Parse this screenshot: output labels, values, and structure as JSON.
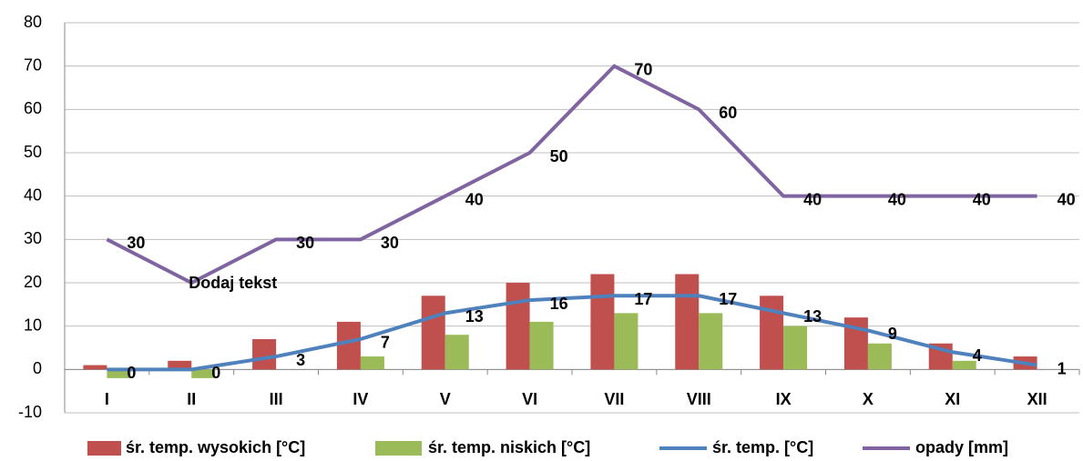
{
  "chart_data": {
    "type": "bar",
    "categories": [
      "I",
      "II",
      "III",
      "IV",
      "V",
      "VI",
      "VII",
      "VIII",
      "IX",
      "X",
      "XI",
      "XII"
    ],
    "series": [
      {
        "name": "śr. temp. wysokich [°C]",
        "type": "bar",
        "color": "#c0504d",
        "values": [
          1,
          2,
          7,
          11,
          17,
          20,
          22,
          22,
          17,
          12,
          6,
          3
        ]
      },
      {
        "name": "śr. temp. niskich [°C]",
        "type": "bar",
        "color": "#9bbb59",
        "values": [
          -2,
          -2,
          0,
          3,
          8,
          11,
          13,
          13,
          10,
          6,
          2,
          0
        ]
      },
      {
        "name": "śr. temp. [°C]",
        "type": "line",
        "color": "#4f81bd",
        "values": [
          0,
          0,
          3,
          7,
          13,
          16,
          17,
          17,
          13,
          9,
          4,
          1
        ],
        "labels": true
      },
      {
        "name": "opady [mm]",
        "type": "line",
        "color": "#8064a2",
        "values": [
          30,
          20,
          30,
          30,
          40,
          50,
          70,
          60,
          40,
          40,
          40,
          40
        ],
        "labels": true
      }
    ],
    "annotations": [
      "Dodaj tekst"
    ],
    "ylim": [
      -10,
      80
    ],
    "yticks": [
      -10,
      0,
      10,
      20,
      30,
      40,
      50,
      60,
      70,
      80
    ],
    "grid": true,
    "legend": "bottom"
  }
}
